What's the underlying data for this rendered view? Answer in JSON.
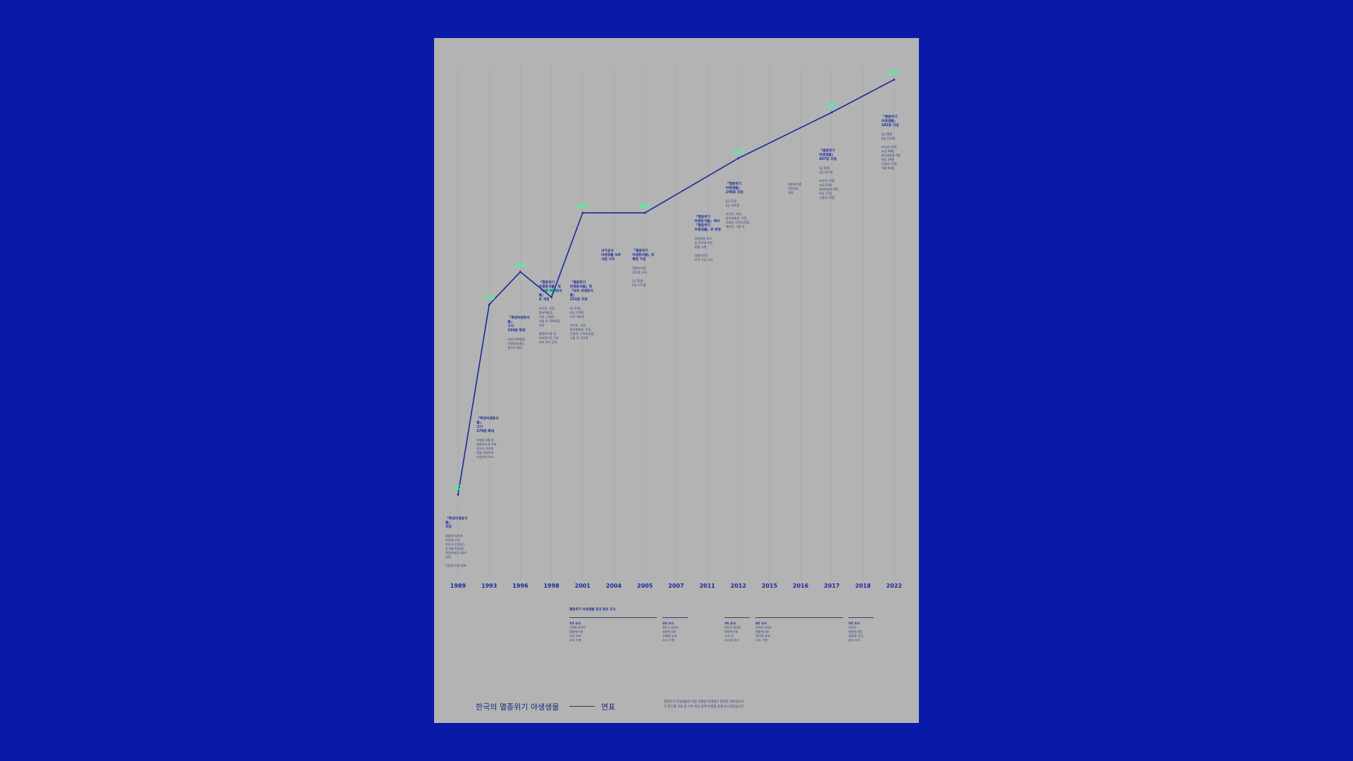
{
  "chart_data": {
    "type": "line",
    "x": [
      "1989",
      "1993",
      "1996",
      "1998",
      "2001",
      "2004",
      "2005",
      "2007",
      "2011",
      "2012",
      "2015",
      "2016",
      "2017",
      "2018",
      "2022"
    ],
    "points": [
      {
        "x": "1989",
        "y": 92
      },
      {
        "x": "1993",
        "y": 179
      },
      {
        "x": "1996",
        "y": 194
      },
      {
        "x": "1998",
        "y": 194
      },
      {
        "x": "2001",
        "y": 221
      },
      {
        "x": "2005",
        "y": 221
      },
      {
        "x": "2012",
        "y": 246
      },
      {
        "x": "2017",
        "y": 267
      },
      {
        "x": "2022",
        "y": 282
      }
    ],
    "value_labels": [
      "92",
      "179",
      "194",
      "194",
      "221",
      "221",
      "246",
      "267",
      "282"
    ],
    "title": "한국의 멸종위기 야생생물",
    "subtitle": "연표",
    "colors": {
      "line": "#1a2a9a",
      "label": "#3cff9a",
      "background": "#b3b3b3"
    }
  },
  "events": [
    {
      "id": "1989",
      "title": "「특정야생동식물」\n지정",
      "desc": [
        "법률에 의하여\n보호할 가치\n있다고 인정되는\n동식물 92종을\n특정야생동식물로\n지정",
        "산림청 지정 별표"
      ]
    },
    {
      "id": "1993",
      "title": "「특정야생동식물」\n고시\n179종 확대",
      "desc": [
        "야생동식물 중\n멸종위기에 처해\n있거나 희귀한\n종을 법령으로\n지정하여 보호"
      ]
    },
    {
      "id": "1996",
      "title": "「특정야생동식물」\n고시\n194종 확대",
      "desc": [
        "야생 194종을\n지정보호대상\n종으로 확대"
      ]
    },
    {
      "id": "1998",
      "title": "「멸종위기\n야생동식물」및\n「보호 야생동식물」\n로 개정",
      "desc": [
        "포유류, 조류,\n양서파충류,\n어류, 곤충류,\n식물 등 194종을\n지정",
        "멸종위기종 및\n보호종으로 구분\n하여 관리 강화"
      ]
    },
    {
      "id": "2001",
      "title": "「멸종위기\n야생동식물」및\n「보호 야생동식물」\n221종 지정",
      "desc": [
        "I급 43종\nII급 178종\n으로 재분류",
        "포유류, 조류,\n양서파충류, 어류,\n곤충류, 무척추동물,\n식물 등 221종"
      ]
    },
    {
      "id": "2004",
      "title": "국가공식\n야생생물 보호\n사업 시작",
      "desc": []
    },
    {
      "id": "2005",
      "title": "「멸종위기\n야생동식물」로\n통합 지정",
      "desc": [
        "멸종위기종\n221종 유지",
        "I급 50종\nII급 171종"
      ]
    },
    {
      "id": "2011",
      "title": "「멸종위기\n야생동식물」에서\n「멸종위기\n야생생물」로 변경",
      "desc": [
        "야생생물 보호\n및 관리에 관한\n법률 시행",
        "생물다양성\n보전 사업 시작"
      ]
    },
    {
      "id": "2012",
      "title": "「멸종위기\n야생생물」\n246종 지정",
      "desc": [
        "I급 51종\nII급 195종",
        "포유류, 조류,\n양서파충류, 어류,\n곤충류, 무척추동물,\n해조류, 식물 등"
      ]
    },
    {
      "id": "2016",
      "title": "",
      "desc": [
        "멸종위기종\n복원센터\n개원"
      ]
    },
    {
      "id": "2017",
      "title": "「멸종위기\n야생생물」\n267종 지정",
      "desc": [
        "I급 60종\nII급 207종",
        "포유류 20종\n조류 63종\n양서파충류 8종\n어류 27종\n곤충류 26종"
      ]
    },
    {
      "id": "2022",
      "title": "「멸종위기\n야생생물」\n282종 지정",
      "desc": [
        "I급 68종\nII급 214종",
        "포유류 20종\n조류 69종\n양서파충류 9종\n어류 29종\n곤충류 27종\n식물 92종"
      ]
    }
  ],
  "survey": {
    "title": "멸종위기 야생생물 전국 분포 조사",
    "blocks": [
      {
        "head": "1차 조사",
        "body": "2006-2010\n멸종위기종\n전국 분포\n조사 수행"
      },
      {
        "head": "2차 조사",
        "body": "2011-2014\n멸종위기종\n246종 분포\n조사 수행"
      },
      {
        "head": "3차 조사",
        "body": "2015-2018\n멸종위기종\n조사 및\n서식지 관리"
      },
      {
        "head": "4차 조사",
        "body": "2019-2022\n멸종위기종\n267종 분포\n조사 수행"
      },
      {
        "head": "5차 조사",
        "body": "2023-\n멸종위기종\n282종 전국\n분포 조사"
      }
    ]
  },
  "note": "멸종위기 야생생물의 지정 현황을 연대별로 정리한 연표입니다.\n각 연도별 지정 종 수와 주요 정책 변화를 함께 표시하였습니다."
}
